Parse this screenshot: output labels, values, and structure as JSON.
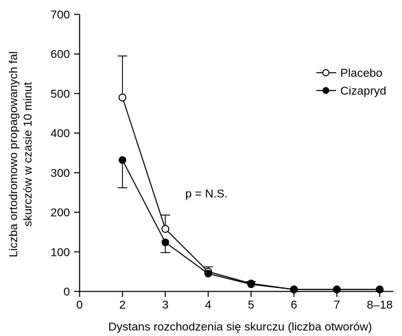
{
  "chart_data": {
    "type": "line",
    "categories": [
      "2",
      "3",
      "4",
      "5",
      "6",
      "7",
      "8–18"
    ],
    "x_ticks": [
      "0",
      "2",
      "3",
      "4",
      "5",
      "6",
      "7",
      "8–18"
    ],
    "y_ticks": [
      0,
      100,
      200,
      300,
      400,
      500,
      600,
      700
    ],
    "ylim": [
      0,
      700
    ],
    "xlabel": "Dystans rozchodzenia się skurczu (liczba otworów)",
    "ylabel_line1": "Liczba ortodromowo propagowanych fal",
    "ylabel_line2": "skurczów w czasie 10 minut",
    "annotation": "p = N.S.",
    "legend_position": "top-right",
    "grid": false,
    "series": [
      {
        "name": "Placebo",
        "marker": "open-circle",
        "values": [
          490,
          158,
          50,
          20,
          5,
          5,
          5
        ],
        "error_upper": [
          595,
          193,
          62,
          25,
          null,
          null,
          null
        ],
        "error_lower": [
          null,
          null,
          null,
          null,
          null,
          null,
          null
        ]
      },
      {
        "name": "Cizapryd",
        "marker": "filled-circle",
        "values": [
          332,
          124,
          45,
          18,
          5,
          5,
          5
        ],
        "error_upper": [
          null,
          null,
          null,
          null,
          null,
          null,
          null
        ],
        "error_lower": [
          262,
          98,
          null,
          null,
          null,
          null,
          null
        ]
      }
    ]
  }
}
